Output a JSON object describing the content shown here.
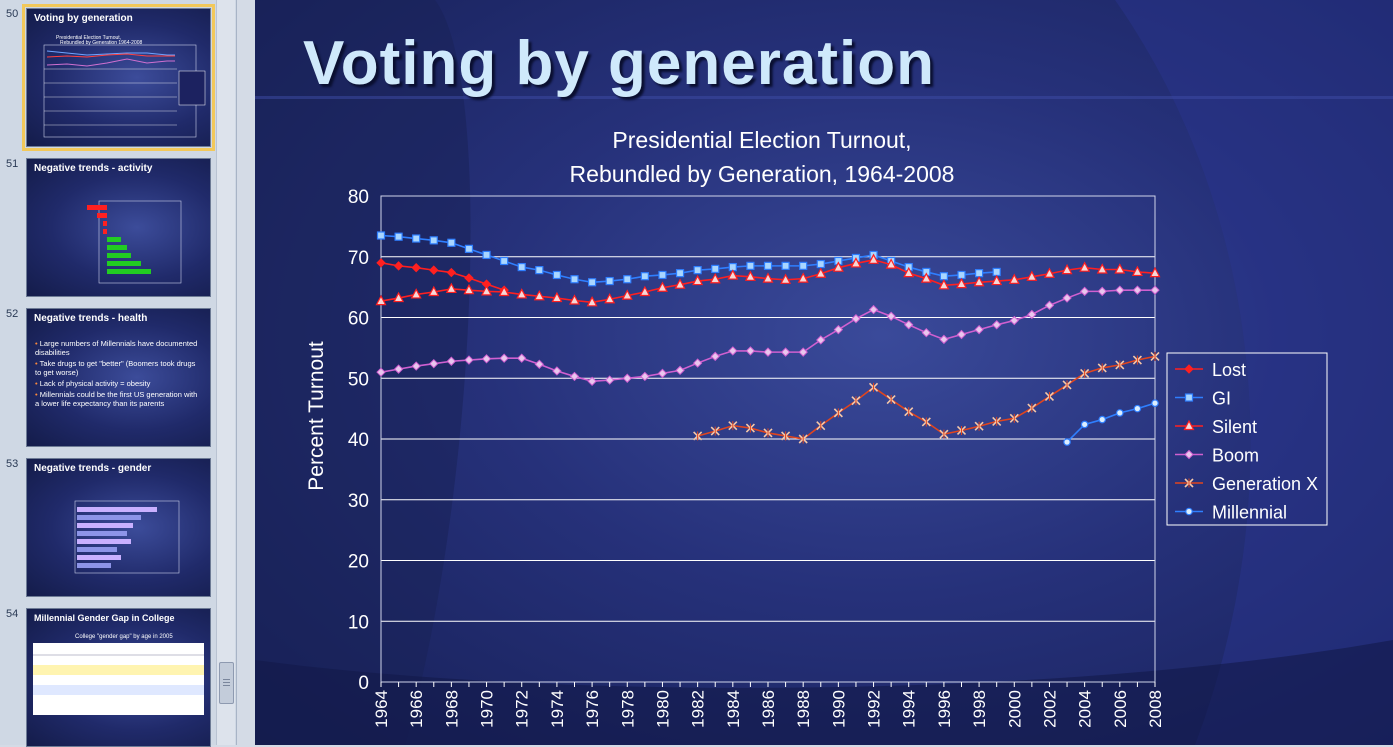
{
  "slide_title": "Voting by generation",
  "thumbnails": [
    {
      "number": "50",
      "title": "Voting by generation",
      "selected": true
    },
    {
      "number": "51",
      "title": "Negative trends - activity",
      "selected": false
    },
    {
      "number": "52",
      "title": "Negative trends - health",
      "selected": false
    },
    {
      "number": "53",
      "title": "Negative trends - gender",
      "selected": false
    },
    {
      "number": "54",
      "title": "Millennial Gender Gap in College",
      "selected": false
    }
  ],
  "thumb52_bullets": [
    "Large numbers of Millennials have documented disabilities",
    "Take drugs to get \"better\" (Boomers took drugs to get worse)",
    "Lack of physical activity = obesity",
    "Millennials could be the first US generation with a lower life expectancy than its parents"
  ],
  "thumb54_subtitle": "College \"gender gap\" by age in 2005",
  "colors": {
    "accent_title": "#cfe9fb",
    "lost": "#ff2020",
    "gi": "#2f7fff",
    "silent": "#ff2020",
    "boom": "#d060d0",
    "genx": "#e0451e",
    "millennial": "#2f7fff"
  },
  "chart_data": {
    "type": "line",
    "title_lines": [
      "Presidential Election Turnout,",
      "Rebundled by Generation, 1964-2008"
    ],
    "ylabel": "Percent Turnout",
    "xlabel": "",
    "ylim": [
      0,
      80
    ],
    "yticks": [
      "0",
      "10",
      "20",
      "30",
      "40",
      "50",
      "60",
      "70",
      "80"
    ],
    "xtick_labels": [
      "1964",
      "1966",
      "1968",
      "1970",
      "1972",
      "1974",
      "1976",
      "1978",
      "1980",
      "1982",
      "1984",
      "1986",
      "1988",
      "1990",
      "1992",
      "1994",
      "1996",
      "1998",
      "2000",
      "2002",
      "2004",
      "2006",
      "2008"
    ],
    "x": [
      1964,
      1965,
      1966,
      1967,
      1968,
      1969,
      1970,
      1971,
      1972,
      1973,
      1974,
      1975,
      1976,
      1977,
      1978,
      1979,
      1980,
      1981,
      1982,
      1983,
      1984,
      1985,
      1986,
      1987,
      1988,
      1989,
      1990,
      1991,
      1992,
      1993,
      1994,
      1995,
      1996,
      1997,
      1998,
      1999,
      2000,
      2001,
      2002,
      2003,
      2004,
      2005,
      2006,
      2007,
      2008
    ],
    "grid": true,
    "legend_position": "right",
    "series": [
      {
        "name": "Lost",
        "marker": "diamond-filled",
        "values": [
          69,
          68.5,
          68.2,
          67.8,
          67.4,
          66.5,
          65.5,
          64.5,
          null,
          null,
          null,
          null,
          null,
          null,
          null,
          null,
          null,
          null,
          null,
          null,
          null,
          null,
          null,
          null,
          null,
          null,
          null,
          null,
          null,
          null,
          null,
          null,
          null,
          null,
          null,
          null,
          null,
          null,
          null,
          null,
          null,
          null,
          null,
          null,
          null
        ]
      },
      {
        "name": "GI",
        "marker": "square-open",
        "values": [
          73.5,
          73.3,
          73,
          72.7,
          72.3,
          71.3,
          70.3,
          69.3,
          68.3,
          67.8,
          67,
          66.3,
          65.8,
          66,
          66.3,
          66.8,
          67,
          67.3,
          67.8,
          68,
          68.3,
          68.5,
          68.5,
          68.5,
          68.5,
          68.8,
          69.3,
          69.8,
          70.3,
          69.3,
          68.3,
          67.5,
          66.8,
          67,
          67.3,
          67.5,
          null,
          null,
          null,
          null,
          null,
          null,
          null,
          null,
          null
        ]
      },
      {
        "name": "Silent",
        "marker": "triangle-open",
        "values": [
          62.7,
          63.2,
          63.8,
          64.2,
          64.7,
          64.5,
          64.3,
          64.2,
          63.8,
          63.5,
          63.2,
          62.8,
          62.5,
          63,
          63.6,
          64.2,
          64.9,
          65.4,
          66,
          66.3,
          66.9,
          66.7,
          66.4,
          66.2,
          66.4,
          67.2,
          68.2,
          68.9,
          69.5,
          68.7,
          67.3,
          66.4,
          65.3,
          65.5,
          65.8,
          66,
          66.2,
          66.7,
          67.2,
          67.8,
          68.2,
          67.9,
          67.9,
          67.5,
          67.3
        ]
      },
      {
        "name": "Boom",
        "marker": "diamond-open",
        "values": [
          51,
          51.5,
          52,
          52.4,
          52.8,
          53,
          53.2,
          53.3,
          53.3,
          52.3,
          51.2,
          50.3,
          49.5,
          49.7,
          50,
          50.3,
          50.8,
          51.3,
          52.5,
          53.6,
          54.5,
          54.5,
          54.3,
          54.3,
          54.3,
          56.3,
          58,
          59.8,
          61.3,
          60.2,
          58.8,
          57.5,
          56.4,
          57.2,
          58,
          58.8,
          59.5,
          60.5,
          62,
          63.2,
          64.3,
          64.3,
          64.5,
          64.5,
          64.5
        ]
      },
      {
        "name": "Generation X",
        "marker": "asterisk",
        "values": [
          null,
          null,
          null,
          null,
          null,
          null,
          null,
          null,
          null,
          null,
          null,
          null,
          null,
          null,
          null,
          null,
          null,
          null,
          40.5,
          41.3,
          42.2,
          41.8,
          41,
          40.5,
          40,
          42.2,
          44.3,
          46.3,
          48.5,
          46.5,
          44.5,
          42.8,
          40.8,
          41.4,
          42.1,
          42.9,
          43.4,
          45.1,
          47,
          48.9,
          50.8,
          51.7,
          52.2,
          53,
          53.6
        ]
      },
      {
        "name": "Millennial",
        "marker": "circle-open",
        "values": [
          null,
          null,
          null,
          null,
          null,
          null,
          null,
          null,
          null,
          null,
          null,
          null,
          null,
          null,
          null,
          null,
          null,
          null,
          null,
          null,
          null,
          null,
          null,
          null,
          null,
          null,
          null,
          null,
          null,
          null,
          null,
          null,
          null,
          null,
          null,
          null,
          null,
          null,
          null,
          39.5,
          42.4,
          43.2,
          44.3,
          45,
          45.9
        ]
      }
    ]
  }
}
